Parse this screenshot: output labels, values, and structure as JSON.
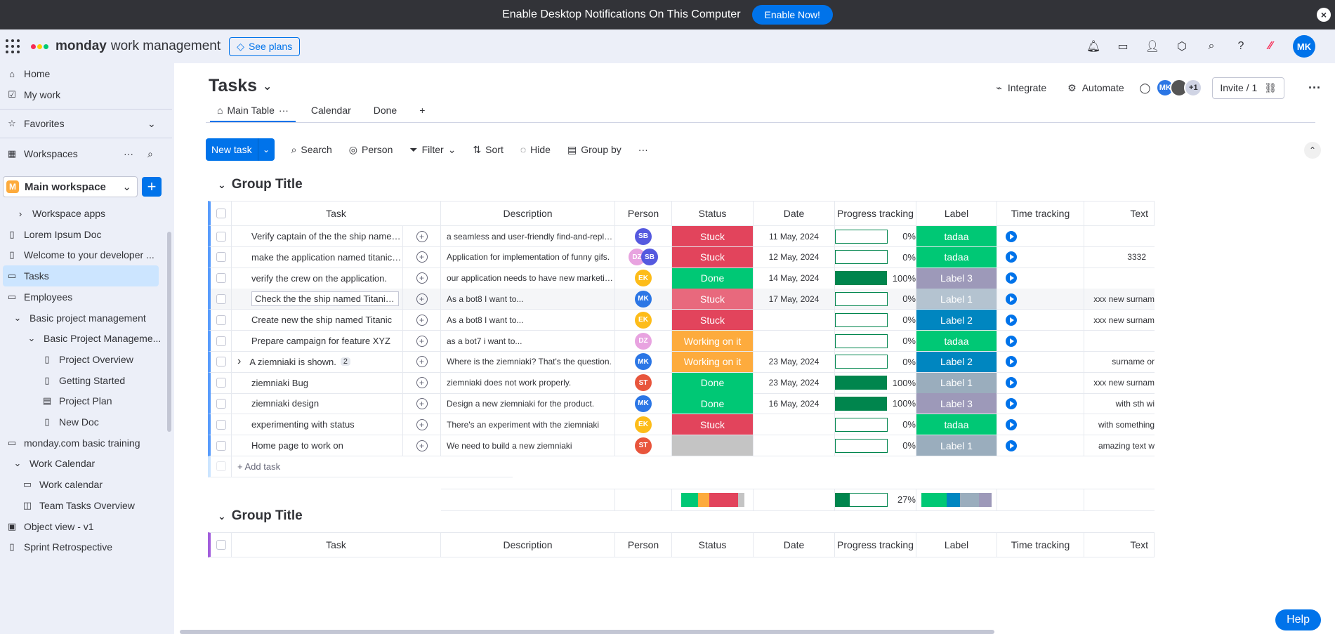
{
  "banner": {
    "text": "Enable Desktop Notifications On This Computer",
    "button": "Enable Now!"
  },
  "header": {
    "brand": "monday",
    "product": "work management",
    "see_plans": "See plans",
    "avatar": "MK"
  },
  "sidebar": {
    "home": "Home",
    "my_work": "My work",
    "favorites": "Favorites",
    "workspaces": "Workspaces",
    "workspace_badge": "M",
    "workspace_name": "Main workspace",
    "items": [
      {
        "label": "Workspace apps",
        "icon": "caret-right"
      },
      {
        "label": "Lorem Ipsum Doc",
        "icon": "doc"
      },
      {
        "label": "Welcome to your developer ...",
        "icon": "doc"
      },
      {
        "label": "Tasks",
        "icon": "board"
      },
      {
        "label": "Employees",
        "icon": "board"
      },
      {
        "label": "Basic project management",
        "icon": "caret-down"
      },
      {
        "label": "Basic Project Manageme...",
        "icon": "caret-down"
      },
      {
        "label": "Project Overview",
        "icon": "doc"
      },
      {
        "label": "Getting Started",
        "icon": "doc"
      },
      {
        "label": "Project Plan",
        "icon": "gantt"
      },
      {
        "label": "New Doc",
        "icon": "doc"
      },
      {
        "label": "monday.com basic training",
        "icon": "board"
      },
      {
        "label": "Work Calendar",
        "icon": "caret-down"
      },
      {
        "label": "Work calendar",
        "icon": "board"
      },
      {
        "label": "Team Tasks Overview",
        "icon": "dashboard"
      },
      {
        "label": "Object view - v1",
        "icon": "object"
      },
      {
        "label": "Sprint Retrospective",
        "icon": "doc"
      }
    ]
  },
  "board": {
    "title": "Tasks",
    "integrate": "Integrate",
    "automate": "Automate",
    "members_extra": "+1",
    "invite": "Invite / 1",
    "tabs": [
      "Main Table",
      "Calendar",
      "Done"
    ],
    "toolbar": {
      "new_task": "New task",
      "search": "Search",
      "person": "Person",
      "filter": "Filter",
      "sort": "Sort",
      "hide": "Hide",
      "group_by": "Group by"
    },
    "help": "Help"
  },
  "groups": [
    {
      "title": "Group Title",
      "color": "#579bfc"
    },
    {
      "title": "Group Title",
      "color": "#a25ddc"
    }
  ],
  "columns": [
    "Task",
    "Description",
    "Person",
    "Status",
    "Date",
    "Progress tracking",
    "Label",
    "Time tracking",
    "Text"
  ],
  "rows": [
    {
      "task": "Verify captain of the the ship named T...",
      "desc": "a seamless and user-friendly find-and-replace t...",
      "person": [
        "SB"
      ],
      "status": "Stuck",
      "date": "11 May, 2024",
      "progress": 0,
      "progress_label": "0%",
      "label": "tadaa",
      "text": ""
    },
    {
      "task": "make the application named titanic w...",
      "desc": "Application for implementation of funny gifs.",
      "person": [
        "DZ",
        "SB"
      ],
      "status": "Stuck",
      "date": "12 May, 2024",
      "progress": 0,
      "progress_label": "0%",
      "label": "tadaa",
      "text": "3332"
    },
    {
      "task": "verify the crew on the application.",
      "desc": "our application needs to have new marketing st...",
      "person": [
        "EK"
      ],
      "status": "Done",
      "date": "14 May, 2024",
      "progress": 100,
      "progress_label": "100%",
      "label": "Label 3",
      "text": ""
    },
    {
      "task": "Check the the ship named Titanic acc...",
      "desc": "As a bot8 I want to...",
      "person": [
        "MK"
      ],
      "status": "Stuck",
      "date": "17 May, 2024",
      "progress": 0,
      "progress_label": "0%",
      "label": "Label 1",
      "text": "xxx new surnam"
    },
    {
      "task": "Create new the ship named Titanic",
      "desc": "As a bot8 I want to...",
      "person": [
        "EK"
      ],
      "status": "Stuck",
      "date": "",
      "progress": 0,
      "progress_label": "0%",
      "label": "Label 2",
      "text": "xxx new surnam"
    },
    {
      "task": "Prepare campaign for feature XYZ",
      "desc": "as a bot7 i want to...",
      "person": [
        "DZ"
      ],
      "status": "Working on it",
      "date": "",
      "progress": 0,
      "progress_label": "0%",
      "label": "tadaa",
      "text": ""
    },
    {
      "task": "A ziemniaki is shown.",
      "subitems": "2",
      "desc": "Where is the ziemniaki? That's the question.",
      "person": [
        "MK"
      ],
      "status": "Working on it",
      "date": "23 May, 2024",
      "progress": 0,
      "progress_label": "0%",
      "label": "Label 2",
      "text": "surname or"
    },
    {
      "task": "ziemniaki Bug",
      "desc": "ziemniaki does not work properly.",
      "person": [
        "ST"
      ],
      "status": "Done",
      "date": "23 May, 2024",
      "progress": 100,
      "progress_label": "100%",
      "label": "Label 1",
      "text": "xxx new surnam"
    },
    {
      "task": "ziemniaki design",
      "desc": "Design a new ziemniaki for the product.",
      "person": [
        "MK"
      ],
      "status": "Done",
      "date": "16 May, 2024",
      "progress": 100,
      "progress_label": "100%",
      "label": "Label 3",
      "text": "with sth wi"
    },
    {
      "task": "experimenting with status",
      "desc": "There's an experiment with the ziemniaki",
      "person": [
        "EK"
      ],
      "status": "Stuck",
      "date": "",
      "progress": 0,
      "progress_label": "0%",
      "label": "tadaa",
      "text": "with something"
    },
    {
      "task": "Home page to work on",
      "desc": "We need to build a new ziemniaki",
      "person": [
        "ST"
      ],
      "status": "",
      "date": "",
      "progress": 0,
      "progress_label": "0%",
      "label": "Label 1",
      "text": "amazing text w"
    }
  ],
  "add_task": "+ Add task",
  "summary": {
    "progress": 27,
    "progress_label": "27%"
  },
  "colors": {
    "status": {
      "Stuck": "#e2445c",
      "Done": "#00c875",
      "Working on it": "#fdab3d",
      "": "#c4c4c4"
    },
    "label": {
      "tadaa": "#00c875",
      "Label 1": "#9aadbd",
      "Label 2": "#0086c0",
      "Label 3": "#9d99b9"
    },
    "avatar": {
      "SB": "#5559df",
      "DZ": "#e8a3e0",
      "EK": "#fdbc19",
      "MK": "#2b76e5",
      "ST": "#e8553c"
    }
  }
}
